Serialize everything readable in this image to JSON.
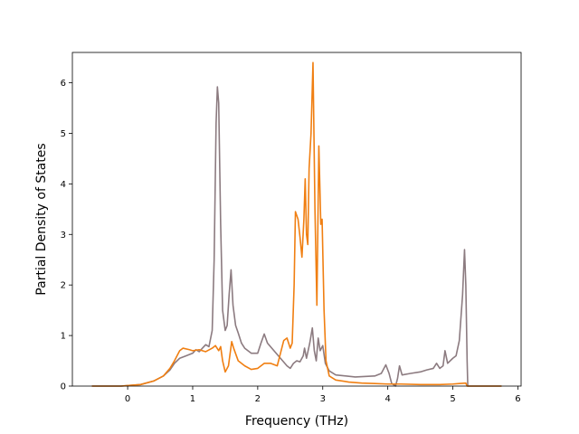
{
  "chart_data": {
    "type": "line",
    "title": "",
    "xlabel": "Frequency (THz)",
    "ylabel": "Partial Density of States",
    "xlim": [
      -0.85,
      6.05
    ],
    "ylim": [
      0,
      6.6
    ],
    "xticks": [
      0,
      1,
      2,
      3,
      4,
      5,
      6
    ],
    "yticks": [
      0,
      1,
      2,
      3,
      4,
      5,
      6
    ],
    "grid": false,
    "legend": "none",
    "series": [
      {
        "color": "#8c7b80",
        "points": [
          [
            -0.55,
            0.0
          ],
          [
            -0.1,
            0.0
          ],
          [
            0.0,
            0.01
          ],
          [
            0.2,
            0.03
          ],
          [
            0.4,
            0.1
          ],
          [
            0.55,
            0.2
          ],
          [
            0.65,
            0.32
          ],
          [
            0.72,
            0.45
          ],
          [
            0.8,
            0.55
          ],
          [
            0.9,
            0.6
          ],
          [
            1.0,
            0.65
          ],
          [
            1.05,
            0.72
          ],
          [
            1.1,
            0.68
          ],
          [
            1.15,
            0.75
          ],
          [
            1.2,
            0.82
          ],
          [
            1.25,
            0.78
          ],
          [
            1.3,
            1.1
          ],
          [
            1.33,
            2.5
          ],
          [
            1.36,
            5.2
          ],
          [
            1.38,
            5.92
          ],
          [
            1.4,
            5.6
          ],
          [
            1.43,
            3.2
          ],
          [
            1.46,
            1.5
          ],
          [
            1.5,
            1.1
          ],
          [
            1.53,
            1.2
          ],
          [
            1.56,
            1.8
          ],
          [
            1.59,
            2.3
          ],
          [
            1.62,
            1.6
          ],
          [
            1.66,
            1.2
          ],
          [
            1.7,
            1.05
          ],
          [
            1.75,
            0.85
          ],
          [
            1.8,
            0.75
          ],
          [
            1.9,
            0.65
          ],
          [
            2.0,
            0.65
          ],
          [
            2.05,
            0.85
          ],
          [
            2.1,
            1.03
          ],
          [
            2.15,
            0.85
          ],
          [
            2.25,
            0.7
          ],
          [
            2.35,
            0.55
          ],
          [
            2.45,
            0.4
          ],
          [
            2.5,
            0.35
          ],
          [
            2.55,
            0.45
          ],
          [
            2.6,
            0.5
          ],
          [
            2.65,
            0.48
          ],
          [
            2.7,
            0.6
          ],
          [
            2.72,
            0.75
          ],
          [
            2.75,
            0.55
          ],
          [
            2.8,
            0.85
          ],
          [
            2.84,
            1.15
          ],
          [
            2.87,
            0.7
          ],
          [
            2.9,
            0.5
          ],
          [
            2.93,
            0.95
          ],
          [
            2.96,
            0.7
          ],
          [
            3.0,
            0.8
          ],
          [
            3.04,
            0.45
          ],
          [
            3.1,
            0.3
          ],
          [
            3.2,
            0.22
          ],
          [
            3.5,
            0.18
          ],
          [
            3.8,
            0.2
          ],
          [
            3.9,
            0.25
          ],
          [
            3.97,
            0.42
          ],
          [
            4.02,
            0.25
          ],
          [
            4.06,
            0.05
          ],
          [
            4.12,
            0.0
          ],
          [
            4.15,
            0.15
          ],
          [
            4.18,
            0.4
          ],
          [
            4.22,
            0.22
          ],
          [
            4.35,
            0.25
          ],
          [
            4.5,
            0.28
          ],
          [
            4.6,
            0.32
          ],
          [
            4.7,
            0.35
          ],
          [
            4.75,
            0.45
          ],
          [
            4.8,
            0.35
          ],
          [
            4.85,
            0.4
          ],
          [
            4.88,
            0.7
          ],
          [
            4.92,
            0.45
          ],
          [
            5.0,
            0.55
          ],
          [
            5.05,
            0.6
          ],
          [
            5.1,
            0.9
          ],
          [
            5.15,
            1.8
          ],
          [
            5.18,
            2.7
          ],
          [
            5.2,
            2.0
          ],
          [
            5.22,
            0.5
          ],
          [
            5.23,
            0.0
          ],
          [
            5.75,
            0.0
          ]
        ]
      },
      {
        "color": "#f07f12",
        "points": [
          [
            -0.55,
            0.0
          ],
          [
            -0.1,
            0.0
          ],
          [
            0.0,
            0.01
          ],
          [
            0.2,
            0.03
          ],
          [
            0.4,
            0.1
          ],
          [
            0.55,
            0.2
          ],
          [
            0.65,
            0.35
          ],
          [
            0.72,
            0.5
          ],
          [
            0.8,
            0.7
          ],
          [
            0.85,
            0.75
          ],
          [
            0.95,
            0.72
          ],
          [
            1.0,
            0.7
          ],
          [
            1.1,
            0.72
          ],
          [
            1.2,
            0.68
          ],
          [
            1.3,
            0.75
          ],
          [
            1.35,
            0.8
          ],
          [
            1.4,
            0.7
          ],
          [
            1.43,
            0.78
          ],
          [
            1.46,
            0.5
          ],
          [
            1.5,
            0.28
          ],
          [
            1.55,
            0.4
          ],
          [
            1.6,
            0.88
          ],
          [
            1.63,
            0.75
          ],
          [
            1.7,
            0.5
          ],
          [
            1.8,
            0.4
          ],
          [
            1.9,
            0.33
          ],
          [
            2.0,
            0.35
          ],
          [
            2.1,
            0.45
          ],
          [
            2.2,
            0.45
          ],
          [
            2.3,
            0.4
          ],
          [
            2.35,
            0.65
          ],
          [
            2.4,
            0.9
          ],
          [
            2.45,
            0.95
          ],
          [
            2.5,
            0.75
          ],
          [
            2.53,
            0.85
          ],
          [
            2.56,
            2.0
          ],
          [
            2.58,
            3.45
          ],
          [
            2.62,
            3.3
          ],
          [
            2.65,
            2.95
          ],
          [
            2.68,
            2.55
          ],
          [
            2.71,
            3.3
          ],
          [
            2.73,
            4.1
          ],
          [
            2.75,
            3.0
          ],
          [
            2.77,
            2.8
          ],
          [
            2.79,
            4.3
          ],
          [
            2.82,
            5.0
          ],
          [
            2.85,
            6.4
          ],
          [
            2.88,
            3.5
          ],
          [
            2.91,
            1.6
          ],
          [
            2.94,
            4.75
          ],
          [
            2.97,
            3.2
          ],
          [
            2.99,
            3.3
          ],
          [
            3.02,
            1.5
          ],
          [
            3.05,
            0.5
          ],
          [
            3.1,
            0.2
          ],
          [
            3.2,
            0.12
          ],
          [
            3.4,
            0.08
          ],
          [
            3.6,
            0.06
          ],
          [
            3.8,
            0.05
          ],
          [
            4.0,
            0.04
          ],
          [
            4.2,
            0.04
          ],
          [
            4.5,
            0.03
          ],
          [
            4.8,
            0.03
          ],
          [
            5.0,
            0.04
          ],
          [
            5.1,
            0.05
          ],
          [
            5.2,
            0.06
          ],
          [
            5.22,
            0.0
          ],
          [
            5.75,
            0.0
          ]
        ]
      }
    ]
  }
}
